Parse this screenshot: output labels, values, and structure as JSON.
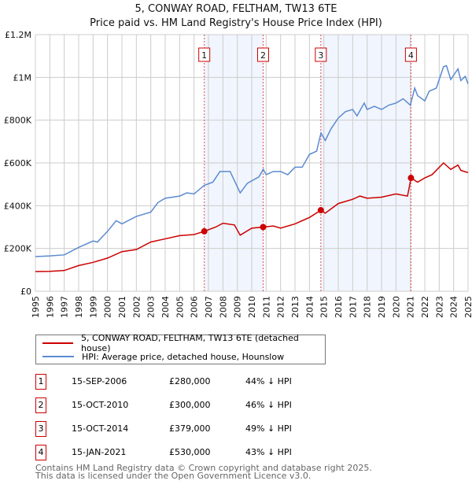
{
  "chart_data": {
    "type": "line",
    "title": "5, CONWAY ROAD, FELTHAM, TW13 6TE",
    "subtitle": "Price paid vs. HM Land Registry's House Price Index (HPI)",
    "xlim": [
      1995,
      2025
    ],
    "ylim": [
      0,
      1200000
    ],
    "yticks": [
      0,
      200000,
      400000,
      600000,
      800000,
      1000000,
      1200000
    ],
    "ytick_labels": [
      "£0",
      "£200K",
      "£400K",
      "£600K",
      "£800K",
      "£1M",
      "£1.2M"
    ],
    "xticks": [
      "1995",
      "1996",
      "1997",
      "1998",
      "1999",
      "2000",
      "2001",
      "2002",
      "2003",
      "2004",
      "2005",
      "2006",
      "2007",
      "2008",
      "2009",
      "2010",
      "2011",
      "2012",
      "2013",
      "2014",
      "2015",
      "2016",
      "2017",
      "2018",
      "2019",
      "2020",
      "2021",
      "2022",
      "2023",
      "2024",
      "2025"
    ],
    "grid": true,
    "series": [
      {
        "name": "5, CONWAY ROAD, FELTHAM, TW13 6TE (detached house)",
        "color": "#cc0000",
        "x": [
          1995,
          1996,
          1997,
          1998,
          1999,
          2000,
          2001,
          2002,
          2003,
          2004,
          2005,
          2006,
          2006.7,
          2007.5,
          2008,
          2008.8,
          2009.2,
          2010,
          2010.8,
          2011.5,
          2012,
          2013,
          2014,
          2014.8,
          2015.1,
          2016,
          2017,
          2017.5,
          2018,
          2019,
          2020,
          2020.8,
          2021.05,
          2021.5,
          2022,
          2022.5,
          2023.3,
          2023.8,
          2024.3,
          2024.5,
          2025
        ],
        "y": [
          92000,
          93000,
          97000,
          120000,
          135000,
          155000,
          185000,
          195000,
          230000,
          245000,
          260000,
          265000,
          280000,
          300000,
          318000,
          310000,
          262000,
          295000,
          300000,
          305000,
          295000,
          315000,
          345000,
          379000,
          365000,
          410000,
          430000,
          445000,
          435000,
          440000,
          455000,
          445000,
          530000,
          510000,
          530000,
          545000,
          600000,
          570000,
          590000,
          565000,
          555000
        ]
      },
      {
        "name": "HPI: Average price, detached house, Hounslow",
        "color": "#5b8bd0",
        "x": [
          1995,
          1996,
          1997,
          1998,
          1999,
          1999.3,
          2000,
          2000.6,
          2001,
          2002,
          2003,
          2003.5,
          2004,
          2005,
          2005.5,
          2006,
          2006.7,
          2007.3,
          2007.8,
          2008.5,
          2009.2,
          2009.7,
          2010.5,
          2010.8,
          2011,
          2011.5,
          2012,
          2012.5,
          2013,
          2013.5,
          2014,
          2014.5,
          2014.8,
          2015.1,
          2015.5,
          2016,
          2016.5,
          2017,
          2017.3,
          2017.8,
          2018,
          2018.5,
          2019,
          2019.5,
          2020,
          2020.5,
          2021,
          2021.3,
          2021.5,
          2022,
          2022.3,
          2022.8,
          2023.3,
          2023.5,
          2023.8,
          2024.3,
          2024.5,
          2024.8,
          2025
        ],
        "y": [
          162000,
          165000,
          170000,
          205000,
          235000,
          230000,
          280000,
          330000,
          315000,
          350000,
          370000,
          415000,
          435000,
          445000,
          460000,
          455000,
          495000,
          510000,
          560000,
          560000,
          460000,
          505000,
          535000,
          570000,
          545000,
          560000,
          560000,
          545000,
          580000,
          580000,
          640000,
          655000,
          740000,
          705000,
          760000,
          810000,
          840000,
          850000,
          820000,
          880000,
          850000,
          865000,
          850000,
          870000,
          880000,
          900000,
          870000,
          950000,
          915000,
          890000,
          935000,
          950000,
          1050000,
          1055000,
          990000,
          1040000,
          985000,
          1005000,
          970000
        ]
      }
    ],
    "sales": [
      {
        "label": "1",
        "x": 2006.71,
        "price": 280000,
        "date": "15-SEP-2006",
        "price_label": "£280,000",
        "hpi": "44% ↓ HPI"
      },
      {
        "label": "2",
        "x": 2010.79,
        "price": 300000,
        "date": "15-OCT-2010",
        "price_label": "£300,000",
        "hpi": "46% ↓ HPI"
      },
      {
        "label": "3",
        "x": 2014.79,
        "price": 379000,
        "date": "15-OCT-2014",
        "price_label": "£379,000",
        "hpi": "49% ↓ HPI"
      },
      {
        "label": "4",
        "x": 2021.04,
        "price": 530000,
        "date": "15-JAN-2021",
        "price_label": "£530,000",
        "hpi": "43% ↓ HPI"
      }
    ],
    "legend": "below"
  },
  "footer": {
    "line1": "Contains HM Land Registry data © Crown copyright and database right 2025.",
    "line2": "This data is licensed under the Open Government Licence v3.0."
  }
}
